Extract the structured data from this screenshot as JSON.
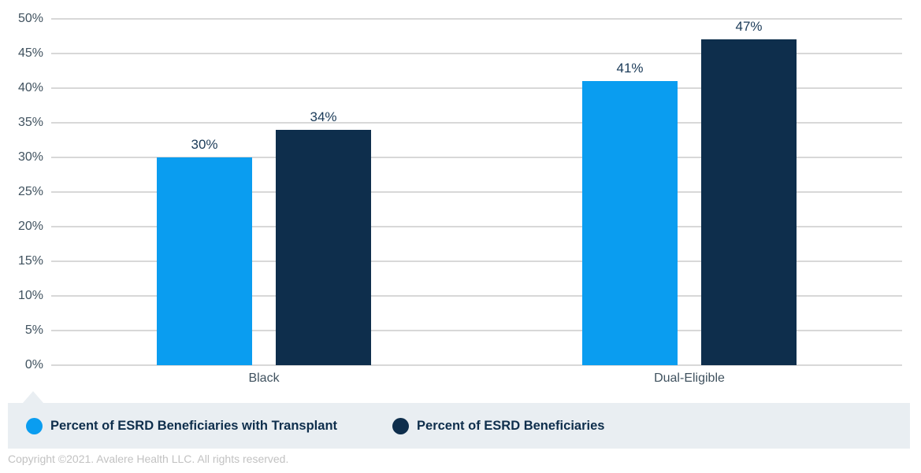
{
  "chart_data": {
    "type": "bar",
    "categories": [
      "Black",
      "Dual-Eligible"
    ],
    "series": [
      {
        "name": "Percent of ESRD Beneficiaries with Transplant",
        "color": "#0a9df0",
        "values": [
          30,
          41
        ]
      },
      {
        "name": "Percent of ESRD Beneficiaries",
        "color": "#0e2e4c",
        "values": [
          34,
          47
        ]
      }
    ],
    "data_labels": [
      [
        "30%",
        "41%"
      ],
      [
        "34%",
        "47%"
      ]
    ],
    "title": "",
    "xlabel": "",
    "ylabel": "",
    "ylim": [
      0,
      50
    ],
    "ytick_step": 5,
    "ytick_suffix": "%",
    "grid": true,
    "gridline_color": "#d8d8d8",
    "legend_position": "bottom",
    "legend_background": "#e9eef2"
  },
  "footer": {
    "copyright": "Copyright ©2021. Avalere Health LLC. All rights reserved."
  }
}
